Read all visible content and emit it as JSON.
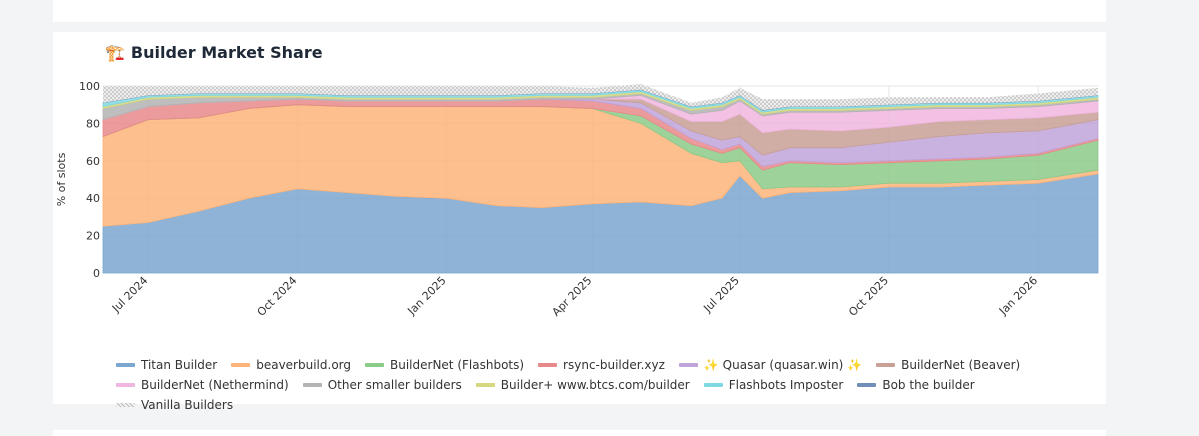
{
  "card": {
    "title_icon": "🏗️",
    "title": "Builder Market Share"
  },
  "chart_data": {
    "type": "area",
    "stacked": true,
    "title": "Builder Market Share",
    "xlabel": "",
    "ylabel": "% of slots",
    "ylim": [
      0,
      100
    ],
    "yticks": [
      0,
      20,
      40,
      60,
      80,
      100
    ],
    "xlim": [
      "2024-06-03",
      "2026-02-07"
    ],
    "xticks": [
      {
        "date": "2024-07-01",
        "label": "Jul 2024"
      },
      {
        "date": "2024-10-01",
        "label": "Oct 2024"
      },
      {
        "date": "2025-01-01",
        "label": "Jan 2025"
      },
      {
        "date": "2025-04-01",
        "label": "Apr 2025"
      },
      {
        "date": "2025-07-01",
        "label": "Jul 2025"
      },
      {
        "date": "2025-10-01",
        "label": "Oct 2025"
      },
      {
        "date": "2026-01-01",
        "label": "Jan 2026"
      }
    ],
    "grid": true,
    "legend_position": "bottom",
    "x": [
      "2024-06-03",
      "2024-07-01",
      "2024-08-01",
      "2024-09-01",
      "2024-10-01",
      "2024-11-01",
      "2024-12-01",
      "2025-01-01",
      "2025-02-01",
      "2025-03-01",
      "2025-04-01",
      "2025-05-01",
      "2025-06-01",
      "2025-06-20",
      "2025-07-01",
      "2025-07-15",
      "2025-08-01",
      "2025-09-01",
      "2025-10-01",
      "2025-11-01",
      "2025-12-01",
      "2026-01-01",
      "2026-02-07"
    ],
    "series": [
      {
        "name": "Titan Builder",
        "color": "#7aa6cf",
        "values": [
          25,
          27,
          33,
          40,
          45,
          43,
          41,
          40,
          36,
          35,
          37,
          38,
          36,
          40,
          52,
          40,
          43,
          44,
          46,
          46,
          47,
          48,
          53
        ]
      },
      {
        "name": "beaverbuild.org",
        "color": "#fdb47a",
        "values": [
          48,
          55,
          50,
          48,
          45,
          46,
          48,
          49,
          53,
          54,
          51,
          42,
          28,
          19,
          8,
          5,
          3,
          2,
          2,
          2,
          2,
          2,
          2
        ]
      },
      {
        "name": "BuilderNet (Flashbots)",
        "color": "#8cca88",
        "values": [
          0,
          0,
          0,
          0,
          0,
          0,
          0,
          0,
          0,
          0,
          0,
          4,
          5,
          5,
          7,
          10,
          13,
          12,
          11,
          12,
          12,
          13,
          16
        ]
      },
      {
        "name": "rsync-builder.xyz",
        "color": "#e88989",
        "values": [
          9,
          7,
          8,
          4,
          3,
          3,
          3,
          3,
          3,
          4,
          4,
          4,
          3,
          2,
          2,
          2,
          1,
          1,
          1,
          1,
          1,
          1,
          1
        ]
      },
      {
        "name": "✨ Quasar (quasar.win) ✨",
        "color": "#c0a3da",
        "values": [
          0,
          0,
          0,
          0,
          0,
          0,
          0,
          0,
          0,
          0,
          1,
          3,
          4,
          5,
          4,
          6,
          7,
          8,
          10,
          12,
          13,
          12,
          10
        ]
      },
      {
        "name": "BuilderNet (Beaver)",
        "color": "#c8a095",
        "values": [
          0,
          0,
          0,
          0,
          0,
          0,
          0,
          0,
          0,
          0,
          0,
          2,
          5,
          10,
          12,
          12,
          10,
          9,
          8,
          8,
          7,
          7,
          4
        ]
      },
      {
        "name": "BuilderNet (Nethermind)",
        "color": "#f0b6df",
        "values": [
          0,
          0,
          0,
          0,
          0,
          0,
          0,
          0,
          0,
          0,
          0,
          2,
          4,
          6,
          7,
          9,
          9,
          10,
          9,
          7,
          6,
          6,
          6
        ]
      },
      {
        "name": "Other smaller builders",
        "color": "#b3b3b3",
        "values": [
          6,
          4,
          3,
          2,
          1,
          1,
          1,
          1,
          1,
          1,
          1,
          1,
          2,
          2,
          1,
          1,
          1,
          1,
          1,
          1,
          1,
          1,
          1
        ]
      },
      {
        "name": "Builder+ www.btcs.com/builder",
        "color": "#d5d87e",
        "values": [
          1,
          1,
          1,
          1,
          1,
          1,
          1,
          1,
          1,
          1,
          1,
          1,
          1,
          1,
          1,
          1,
          1,
          1,
          1,
          1,
          1,
          1,
          1
        ]
      },
      {
        "name": "Flashbots Imposter",
        "color": "#7fd8e2",
        "values": [
          2,
          1,
          1,
          1,
          1,
          1,
          1,
          1,
          1,
          1,
          1,
          1,
          1,
          1,
          1,
          1,
          1,
          1,
          1,
          1,
          1,
          1,
          1
        ]
      },
      {
        "name": "Bob the builder",
        "color": "#6f8fb8",
        "values": [
          0,
          0,
          0,
          0,
          0,
          0,
          0,
          0,
          0,
          0,
          0,
          0,
          0,
          0,
          0,
          0,
          0,
          0,
          0,
          0,
          0,
          0,
          0
        ]
      },
      {
        "name": "Vanilla Builders",
        "color": "#d0d0d0",
        "pattern": "crosshatch",
        "values": [
          9,
          5,
          4,
          4,
          4,
          5,
          5,
          5,
          5,
          4,
          3,
          3,
          2,
          3,
          4,
          6,
          4,
          4,
          4,
          3,
          3,
          4,
          4
        ]
      }
    ]
  }
}
